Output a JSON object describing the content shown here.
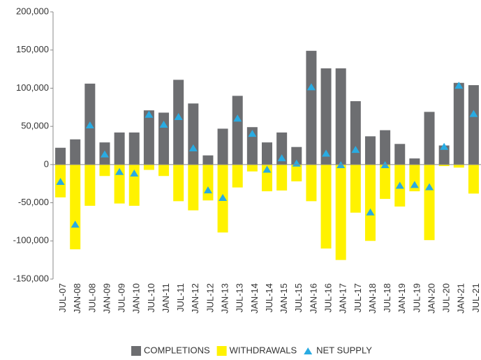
{
  "chart_data": {
    "type": "bar",
    "categories": [
      "JUL-07",
      "JAN-08",
      "JUL-08",
      "JAN-09",
      "JUL-09",
      "JAN-10",
      "JUL-10",
      "JAN-11",
      "JUL-11",
      "JAN-12",
      "JUL-12",
      "JAN-13",
      "JUL-13",
      "JAN-14",
      "JUL-14",
      "JAN-15",
      "JUL-15",
      "JAN-16",
      "JUL-16",
      "JAN-17",
      "JUL-17",
      "JAN-18",
      "JUL-18",
      "JAN-19",
      "JUL-19",
      "JAN-20",
      "JUL-20",
      "JAN-21",
      "JUL-21"
    ],
    "series": [
      {
        "name": "COMPLETIONS",
        "color": "#6d6e71",
        "values": [
          22000,
          33000,
          106000,
          29000,
          42000,
          42000,
          71000,
          68000,
          111000,
          80000,
          12000,
          47000,
          90000,
          49000,
          29000,
          42000,
          23000,
          149000,
          126000,
          126000,
          83000,
          37000,
          45000,
          27000,
          8000,
          69000,
          25000,
          107000,
          104000
        ]
      },
      {
        "name": "WITHDRAWALS",
        "color": "#fff200",
        "values": [
          -43000,
          -111000,
          -54000,
          -15000,
          -51000,
          -54000,
          -7000,
          -15000,
          -48000,
          -60000,
          -47000,
          -89000,
          -30000,
          -9000,
          -35000,
          -34000,
          -22000,
          -48000,
          -110000,
          -125000,
          -63000,
          -100000,
          -45000,
          -55000,
          -35000,
          -99000,
          -2000,
          -4000,
          -38000
        ]
      },
      {
        "name": "NET SUPPLY",
        "color": "#29abe2",
        "marker": "triangle",
        "values": [
          -23000,
          -79000,
          51000,
          13000,
          -10000,
          -12000,
          65000,
          52000,
          62000,
          21000,
          -34000,
          -44000,
          60000,
          40000,
          -7000,
          8000,
          1000,
          101000,
          14000,
          -1000,
          19000,
          -63000,
          -1000,
          -28000,
          -27000,
          -30000,
          23000,
          103000,
          66000
        ]
      }
    ],
    "ylim": [
      -150000,
      200000
    ],
    "yticks": [
      {
        "value": -150000,
        "label": "-150,000"
      },
      {
        "value": -100000,
        "label": "-100,000"
      },
      {
        "value": -50000,
        "label": "-50,000"
      },
      0,
      {
        "value": 50000,
        "label": "50,000"
      },
      {
        "value": 100000,
        "label": "100,000"
      },
      {
        "value": 150000,
        "label": "150,000"
      },
      {
        "value": 200000,
        "label": "200,000"
      }
    ],
    "legend": "bottom"
  }
}
